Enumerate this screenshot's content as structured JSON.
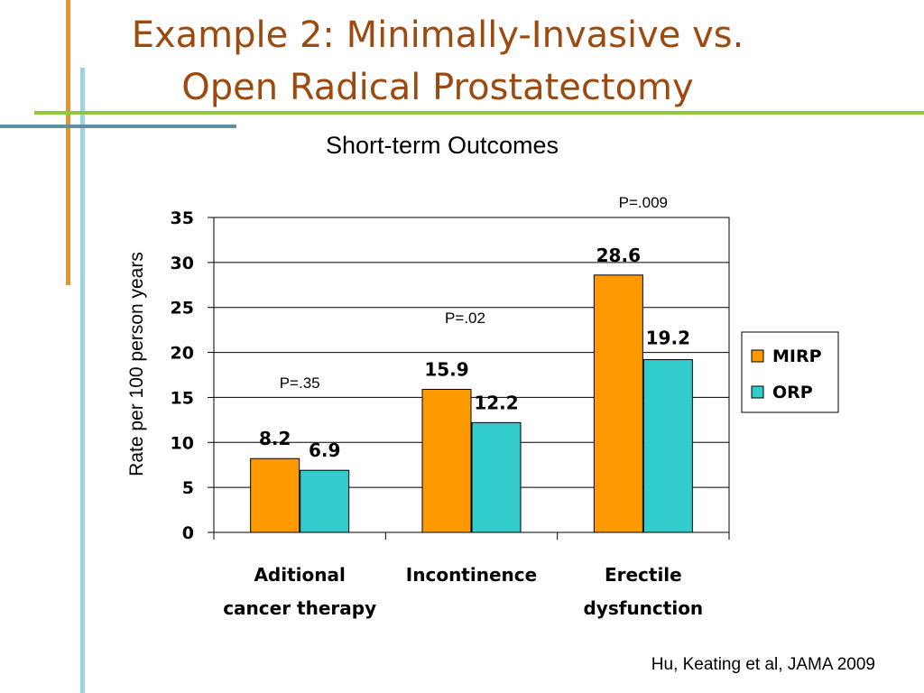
{
  "slide": {
    "title_line1": "Example 2: Minimally-Invasive vs.",
    "title_line2": "Open Radical Prostatectomy",
    "citation": "Hu, Keating et al, JAMA 2009"
  },
  "colors": {
    "title": "#9c4a10",
    "deco_orange": "#e6922e",
    "deco_green": "#8dc63f",
    "deco_blue_light": "#9ed3e6",
    "deco_blue_dark": "#5f8fa3"
  },
  "chart_data": {
    "type": "bar",
    "title": "Short-term Outcomes",
    "ylabel": "Rate per 100 person years",
    "xlabel": "",
    "ylim": [
      0,
      35
    ],
    "yticks": [
      0,
      5,
      10,
      15,
      20,
      25,
      30,
      35
    ],
    "grid": true,
    "legend_position": "right",
    "categories": [
      [
        "Aditional",
        "cancer therapy"
      ],
      [
        "Incontinence"
      ],
      [
        "Erectile",
        "dysfunction"
      ]
    ],
    "series": [
      {
        "name": "MIRP",
        "color": "#ff9900",
        "values": [
          8.2,
          15.9,
          28.6
        ]
      },
      {
        "name": "ORP",
        "color": "#33cccc",
        "values": [
          6.9,
          12.2,
          19.2
        ]
      }
    ],
    "data_labels": [
      [
        "8.2",
        "15.9",
        "28.6"
      ],
      [
        "6.9",
        "12.2",
        "19.2"
      ]
    ],
    "p_values": [
      "P=.35",
      "P=.02",
      "P=.009"
    ]
  }
}
